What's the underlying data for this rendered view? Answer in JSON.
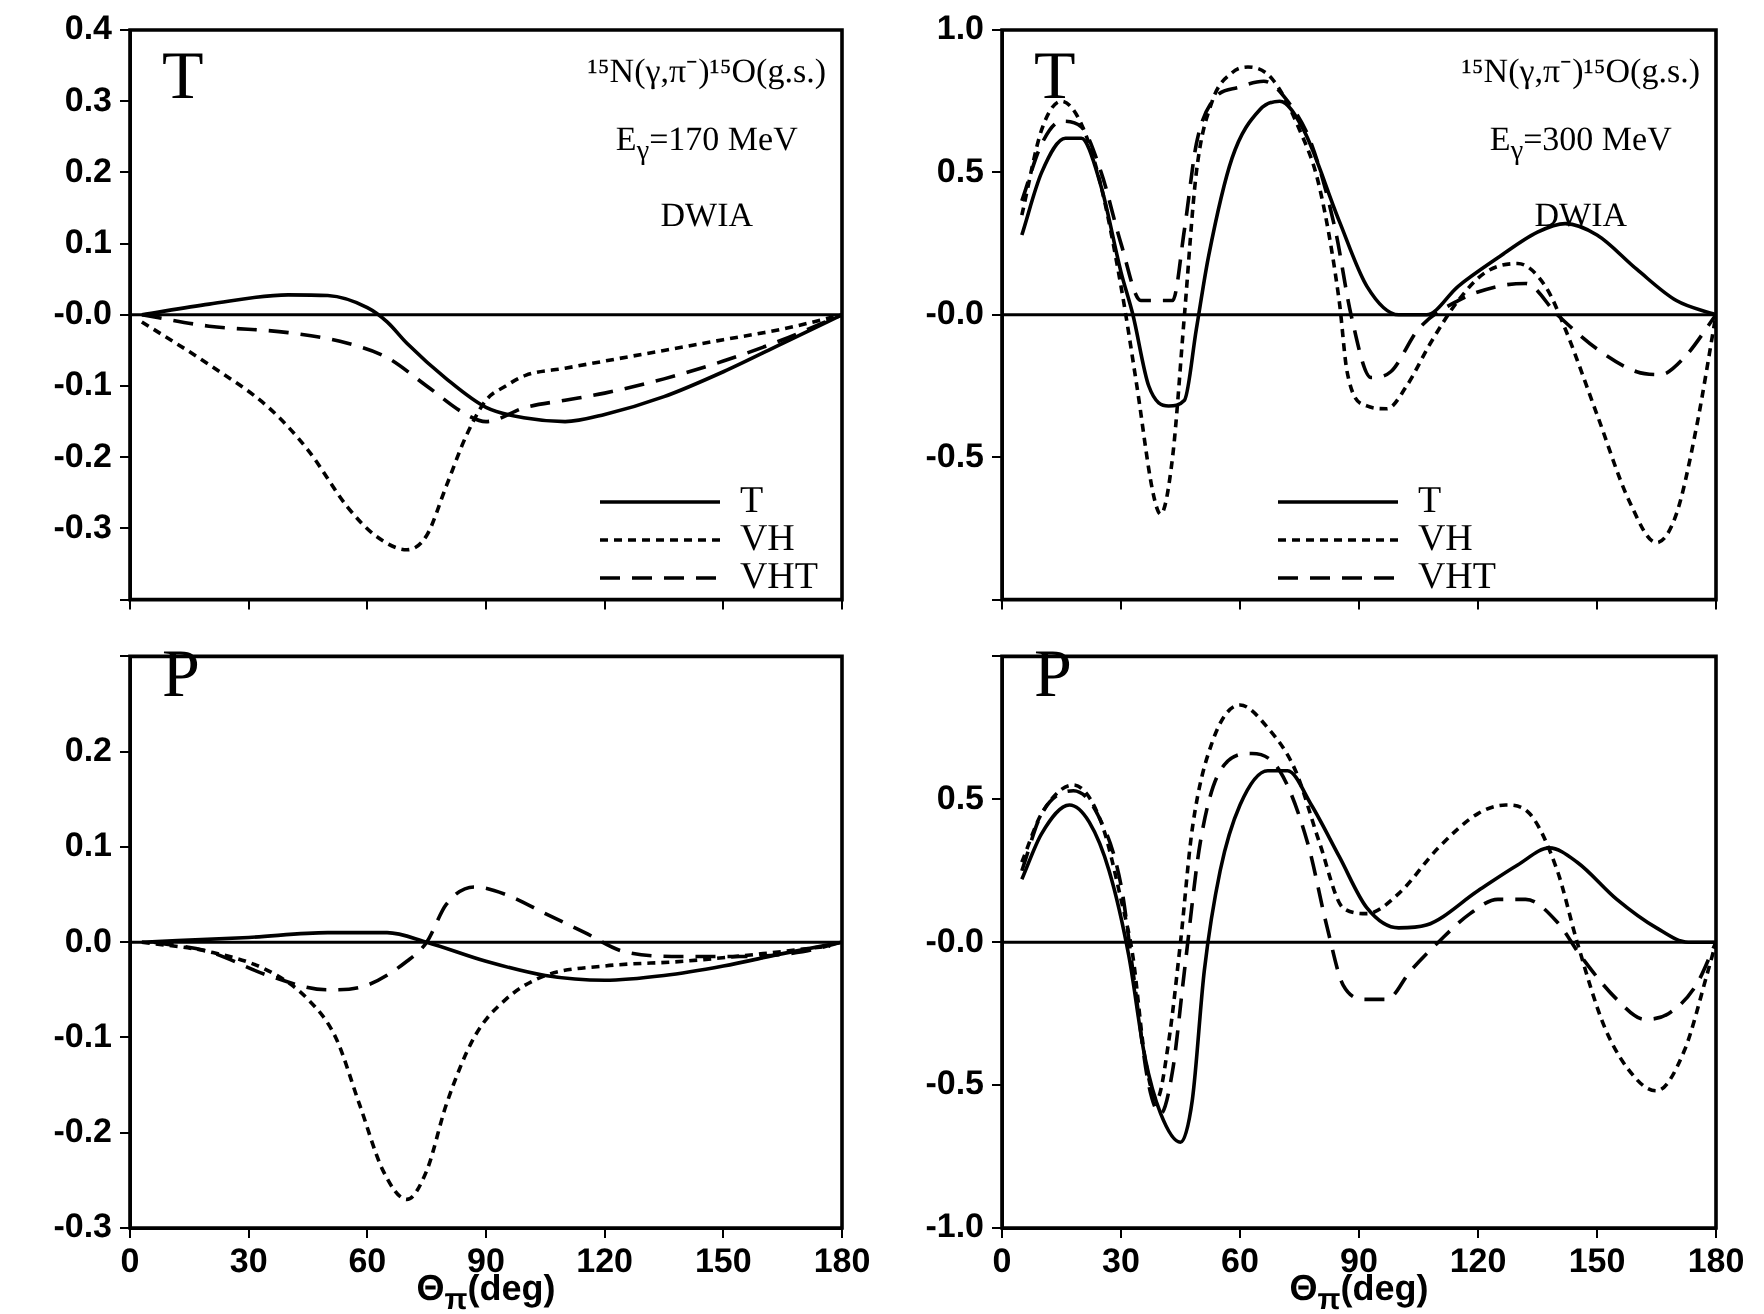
{
  "chart_data": [
    {
      "type": "line",
      "annotations": [
        "T",
        "¹⁵N(γ,π⁻)¹⁵O(g.s.)",
        "E$_{γ}$=170 MeV",
        "DWIA"
      ],
      "xlim": [
        0,
        180
      ],
      "xticks": [
        0,
        30,
        60,
        90,
        120,
        150,
        180
      ],
      "ylim": [
        -0.4,
        0.4
      ],
      "yticks": [
        0.4,
        0.3,
        0.2,
        0.1,
        {
          "value": 0,
          "label": "-0.0"
        },
        -0.1,
        -0.2,
        -0.3,
        {
          "value": -0.4,
          "label": null
        }
      ],
      "tick_labels": "y",
      "legend": "bottom right",
      "ref_lines": [
        {
          "axis": "y",
          "value": 0,
          "color": "#000000"
        }
      ],
      "series": [
        {
          "name": "T",
          "color": "#000000",
          "line_style": "solid",
          "x": [
            3,
            20,
            40,
            50,
            60,
            65,
            70,
            80,
            90,
            100,
            110,
            120,
            135,
            150,
            165,
            180
          ],
          "values": [
            0,
            0.015,
            0.028,
            0.027,
            0.01,
            -0.01,
            -0.04,
            -0.09,
            -0.13,
            -0.145,
            -0.15,
            -0.14,
            -0.115,
            -0.08,
            -0.04,
            0
          ]
        },
        {
          "name": "VH",
          "color": "#000000",
          "line_style": "dotted",
          "x": [
            3,
            20,
            35,
            45,
            55,
            62,
            70,
            75,
            80,
            85,
            90,
            95,
            100,
            110,
            120,
            135,
            150,
            165,
            180
          ],
          "values": [
            -0.01,
            -0.07,
            -0.13,
            -0.19,
            -0.27,
            -0.31,
            -0.33,
            -0.31,
            -0.24,
            -0.17,
            -0.12,
            -0.1,
            -0.085,
            -0.075,
            -0.065,
            -0.05,
            -0.035,
            -0.02,
            0
          ]
        },
        {
          "name": "VHT",
          "color": "#000000",
          "line_style": "dashed",
          "x": [
            3,
            20,
            40,
            55,
            65,
            75,
            85,
            90,
            100,
            110,
            120,
            135,
            150,
            165,
            180
          ],
          "values": [
            0,
            -0.016,
            -0.025,
            -0.04,
            -0.06,
            -0.1,
            -0.14,
            -0.15,
            -0.13,
            -0.12,
            -0.11,
            -0.09,
            -0.065,
            -0.035,
            0
          ]
        }
      ]
    },
    {
      "type": "line",
      "annotations": [
        "T",
        "¹⁵N(γ,π⁻)¹⁵O(g.s.)",
        "E$_{γ}$=300 MeV",
        "DWIA"
      ],
      "xlim": [
        0,
        180
      ],
      "xticks": [
        0,
        30,
        60,
        90,
        120,
        150,
        180
      ],
      "ylim": [
        -1,
        1
      ],
      "yticks": [
        {
          "value": 1,
          "label": "1.0"
        },
        0.5,
        {
          "value": 0,
          "label": "-0.0"
        },
        -0.5,
        {
          "value": -1,
          "label": null
        }
      ],
      "tick_labels": "y",
      "legend": "bottom right",
      "ref_lines": [
        {
          "axis": "y",
          "value": 0,
          "color": "#000000"
        }
      ],
      "series": [
        {
          "name": "T",
          "color": "#000000",
          "line_style": "solid",
          "x": [
            5,
            10,
            16,
            20,
            25,
            30,
            33,
            37,
            42,
            46,
            49,
            52,
            58,
            65,
            70,
            76,
            85,
            92,
            100,
            107,
            115,
            125,
            135,
            142,
            150,
            160,
            170,
            180
          ],
          "values": [
            0.28,
            0.5,
            0.62,
            0.62,
            0.45,
            0.15,
            0,
            -0.25,
            -0.32,
            -0.3,
            -0.05,
            0.2,
            0.55,
            0.72,
            0.75,
            0.65,
            0.33,
            0.1,
            0,
            0,
            0.1,
            0.2,
            0.29,
            0.32,
            0.28,
            0.16,
            0.05,
            0
          ]
        },
        {
          "name": "VH",
          "color": "#000000",
          "line_style": "dotted",
          "x": [
            5,
            10,
            15,
            20,
            25,
            30,
            34,
            38,
            40,
            43,
            46,
            49,
            53,
            58,
            62,
            68,
            75,
            80,
            85,
            87,
            92,
            97,
            102,
            108,
            115,
            122,
            130,
            137,
            142,
            150,
            158,
            165,
            170,
            175,
            180
          ],
          "values": [
            0.35,
            0.65,
            0.75,
            0.67,
            0.45,
            0.1,
            -0.25,
            -0.62,
            -0.7,
            -0.5,
            0,
            0.5,
            0.75,
            0.85,
            0.87,
            0.83,
            0.65,
            0.45,
            0.05,
            -0.2,
            -0.32,
            -0.33,
            -0.25,
            -0.1,
            0.05,
            0.15,
            0.18,
            0.1,
            -0.05,
            -0.35,
            -0.65,
            -0.8,
            -0.7,
            -0.4,
            0
          ]
        },
        {
          "name": "VHT",
          "color": "#000000",
          "line_style": "dashed",
          "x": [
            5,
            10,
            15,
            20,
            25,
            30,
            35,
            40,
            43,
            46,
            49,
            53,
            60,
            66,
            72,
            78,
            84,
            88,
            93,
            98,
            105,
            115,
            125,
            132,
            140,
            150,
            160,
            166,
            172,
            180
          ],
          "values": [
            0.4,
            0.6,
            0.68,
            0.66,
            0.5,
            0.25,
            0.05,
            0.05,
            0.05,
            0.3,
            0.6,
            0.75,
            0.8,
            0.82,
            0.75,
            0.6,
            0.3,
            0,
            -0.22,
            -0.2,
            -0.05,
            0.05,
            0.1,
            0.11,
            0,
            -0.12,
            -0.2,
            -0.21,
            -0.15,
            0
          ]
        }
      ]
    },
    {
      "type": "line",
      "annotations": [
        "P"
      ],
      "xlabel": "Θ$_{π}$(deg)",
      "xlim": [
        0,
        180
      ],
      "xticks": [
        0,
        30,
        60,
        90,
        120,
        150,
        180
      ],
      "ylim": [
        -0.3,
        0.3
      ],
      "yticks": [
        {
          "value": 0.3,
          "label": null
        },
        0.2,
        0.1,
        {
          "value": 0,
          "label": "0.0"
        },
        -0.1,
        -0.2,
        -0.3
      ],
      "ref_lines": [
        {
          "axis": "y",
          "value": 0,
          "color": "#000000"
        }
      ],
      "series": [
        {
          "color": "#000000",
          "line_style": "solid",
          "x": [
            3,
            30,
            50,
            65,
            75,
            90,
            105,
            120,
            135,
            150,
            165,
            180
          ],
          "values": [
            0,
            0.005,
            0.01,
            0.01,
            0,
            -0.02,
            -0.035,
            -0.04,
            -0.035,
            -0.025,
            -0.012,
            0
          ]
        },
        {
          "color": "#000000",
          "line_style": "dotted",
          "x": [
            3,
            20,
            35,
            45,
            52,
            58,
            64,
            70,
            75,
            80,
            87,
            95,
            105,
            120,
            140,
            160,
            177
          ],
          "values": [
            0,
            -0.01,
            -0.03,
            -0.06,
            -0.1,
            -0.17,
            -0.24,
            -0.27,
            -0.24,
            -0.17,
            -0.1,
            -0.06,
            -0.035,
            -0.025,
            -0.02,
            -0.012,
            -0.004
          ]
        },
        {
          "color": "#000000",
          "line_style": "dashed",
          "x": [
            6,
            20,
            35,
            50,
            60,
            70,
            75,
            80,
            87,
            95,
            105,
            115,
            125,
            140,
            155,
            170,
            180
          ],
          "values": [
            0,
            -0.01,
            -0.035,
            -0.05,
            -0.045,
            -0.02,
            0,
            0.04,
            0.058,
            0.05,
            0.03,
            0.01,
            -0.01,
            -0.015,
            -0.015,
            -0.01,
            0
          ]
        }
      ]
    },
    {
      "type": "line",
      "annotations": [
        "P"
      ],
      "xlabel": "Θ$_{π}$(deg)",
      "xlim": [
        0,
        180
      ],
      "xticks": [
        0,
        30,
        60,
        90,
        120,
        150,
        180
      ],
      "ylim": [
        -1,
        1
      ],
      "yticks": [
        {
          "value": 1,
          "label": null
        },
        0.5,
        {
          "value": 0,
          "label": "-0.0"
        },
        -0.5,
        {
          "value": -1,
          "label": "-1.0"
        }
      ],
      "ref_lines": [
        {
          "axis": "y",
          "value": 0,
          "color": "#000000"
        }
      ],
      "series": [
        {
          "color": "#000000",
          "line_style": "solid",
          "x": [
            5,
            10,
            17,
            22,
            27,
            32,
            36,
            40,
            45,
            48,
            51,
            55,
            60,
            67,
            72,
            78,
            85,
            92,
            100,
            107,
            120,
            130,
            138,
            145,
            155,
            165,
            173,
            180
          ],
          "values": [
            0.22,
            0.38,
            0.48,
            0.42,
            0.25,
            -0.05,
            -0.4,
            -0.6,
            -0.7,
            -0.55,
            -0.1,
            0.25,
            0.48,
            0.6,
            0.6,
            0.48,
            0.3,
            0.12,
            0.05,
            0.06,
            0.18,
            0.27,
            0.33,
            0.28,
            0.15,
            0.05,
            0,
            0
          ]
        },
        {
          "color": "#000000",
          "line_style": "dotted",
          "x": [
            5,
            10,
            18,
            25,
            30,
            33,
            36,
            39,
            42,
            45,
            48,
            53,
            60,
            67,
            74,
            80,
            86,
            92,
            100,
            110,
            120,
            127,
            133,
            140,
            145,
            152,
            160,
            165,
            172,
            178,
            180
          ],
          "values": [
            0.28,
            0.45,
            0.55,
            0.42,
            0.15,
            -0.05,
            -0.4,
            -0.55,
            -0.35,
            0,
            0.4,
            0.7,
            0.83,
            0.75,
            0.6,
            0.35,
            0.12,
            0.1,
            0.17,
            0.33,
            0.45,
            0.48,
            0.45,
            0.25,
            0,
            -0.3,
            -0.48,
            -0.52,
            -0.38,
            -0.1,
            0
          ]
        },
        {
          "color": "#000000",
          "line_style": "dashed",
          "x": [
            5,
            10,
            18,
            24,
            30,
            33,
            37,
            40,
            43,
            46,
            50,
            55,
            63,
            70,
            77,
            82,
            86,
            92,
            97,
            103,
            110,
            118,
            125,
            132,
            140,
            146,
            155,
            162,
            168,
            175,
            180
          ],
          "values": [
            0.25,
            0.45,
            0.53,
            0.45,
            0.2,
            -0.1,
            -0.5,
            -0.6,
            -0.45,
            -0.1,
            0.35,
            0.6,
            0.66,
            0.6,
            0.35,
            0.05,
            -0.15,
            -0.2,
            -0.2,
            -0.1,
            0,
            0.1,
            0.15,
            0.15,
            0.07,
            -0.05,
            -0.2,
            -0.27,
            -0.25,
            -0.15,
            0
          ]
        }
      ]
    }
  ]
}
